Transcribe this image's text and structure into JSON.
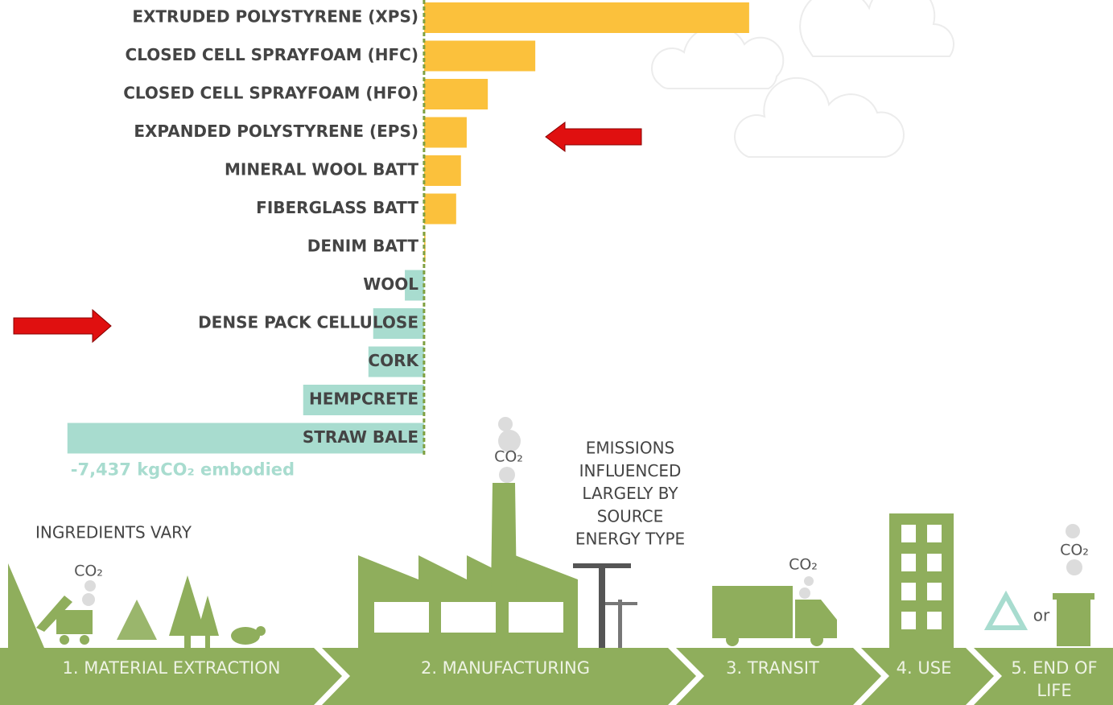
{
  "chart_data": {
    "type": "hbar",
    "categories": [
      "EXTRUDED POLYSTYRENE (XPS)",
      "CLOSED CELL SPRAYFOAM (HFC)",
      "CLOSED CELL SPRAYFOAM (HFO)",
      "EXPANDED POLYSTYRENE (EPS)",
      "MINERAL WOOL BATT",
      "FIBERGLASS BATT",
      "DENIM BATT",
      "WOOL",
      "DENSE PACK CELLULOSE",
      "CORK",
      "HEMPCRETE",
      "STRAW BALE"
    ],
    "values": [
      6780,
      2320,
      1330,
      890,
      770,
      670,
      30,
      -400,
      -1060,
      -1160,
      -2520,
      -7437
    ],
    "value_labels": [
      null,
      null,
      null,
      null,
      null,
      null,
      null,
      null,
      null,
      null,
      null,
      "-7,437 kgCO₂ embodied"
    ],
    "positive_color": "#fbc13c",
    "negative_color": "#a8dccf",
    "xlim": [
      -7500,
      7000
    ]
  },
  "infographic": {
    "note_extraction": "INGREDIENTS VARY",
    "note_energy": [
      "EMISSIONS",
      "INFLUENCED",
      "LARGELY BY",
      "SOURCE",
      "ENERGY TYPE"
    ],
    "co2": "CO₂",
    "or": "or",
    "stages": [
      "1. MATERIAL EXTRACTION",
      "2. MANUFACTURING",
      "3. TRANSIT",
      "4. USE",
      [
        "5. END OF",
        "LIFE"
      ]
    ]
  }
}
